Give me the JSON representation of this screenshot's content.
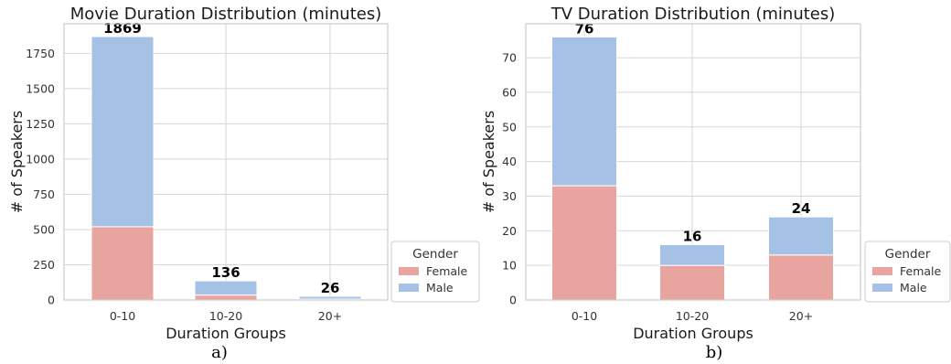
{
  "chart_data": [
    {
      "type": "bar",
      "stacked": true,
      "title": "Movie Duration Distribution (minutes)",
      "xlabel": "Duration Groups",
      "ylabel": "# of Speakers",
      "categories": [
        "0-10",
        "10-20",
        "20+"
      ],
      "series": [
        {
          "name": "Female",
          "values": [
            520,
            35,
            6
          ]
        },
        {
          "name": "Male",
          "values": [
            1349,
            101,
            20
          ]
        }
      ],
      "totals": [
        "1869",
        "136",
        "26"
      ],
      "ylim": [
        0,
        1960
      ],
      "yticks": [
        0,
        250,
        500,
        750,
        1000,
        1250,
        1500,
        1750
      ],
      "legend": {
        "title": "Gender",
        "position": "outside-right-bottom"
      },
      "grid": true,
      "caption": "a)"
    },
    {
      "type": "bar",
      "stacked": true,
      "title": "TV Duration Distribution (minutes)",
      "xlabel": "Duration Groups",
      "ylabel": "# of Speakers",
      "categories": [
        "0-10",
        "10-20",
        "20+"
      ],
      "series": [
        {
          "name": "Female",
          "values": [
            33,
            10,
            13
          ]
        },
        {
          "name": "Male",
          "values": [
            43,
            6,
            11
          ]
        }
      ],
      "totals": [
        "76",
        "16",
        "24"
      ],
      "ylim": [
        0,
        79.8
      ],
      "yticks": [
        0,
        10,
        20,
        30,
        40,
        50,
        60,
        70
      ],
      "legend": {
        "title": "Gender",
        "position": "outside-right-bottom"
      },
      "grid": true,
      "caption": "b)"
    }
  ],
  "colors": {
    "Female": "#e8a49f",
    "Male": "#a5c1e6",
    "grid": "#d6d6d6",
    "frame": "#cccccc"
  }
}
